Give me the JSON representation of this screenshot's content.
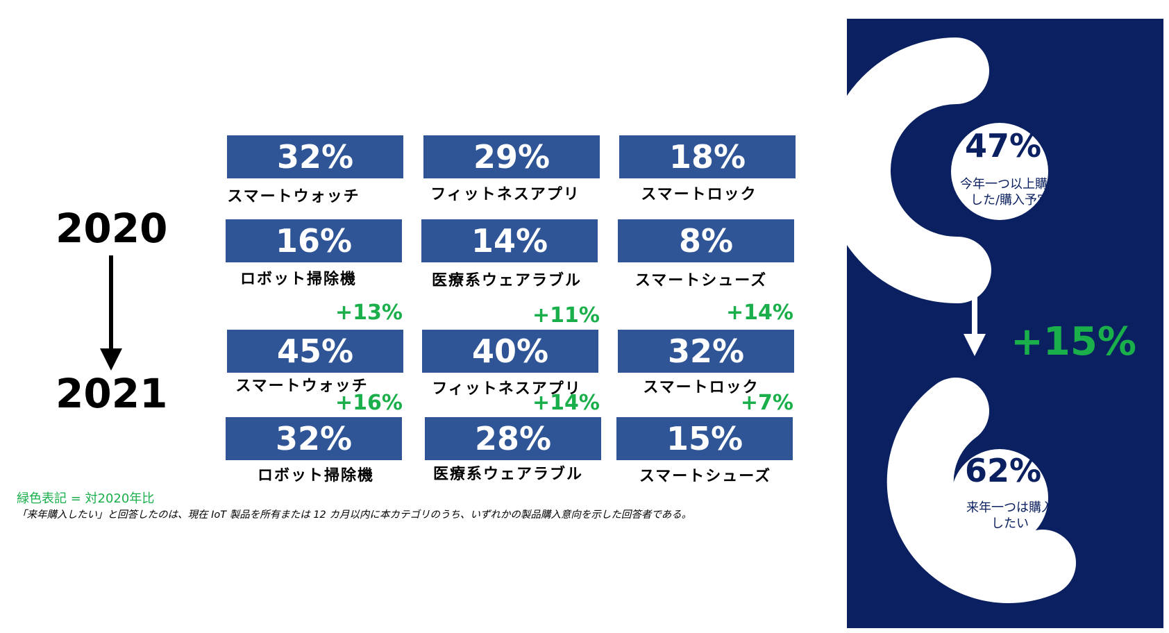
{
  "years": {
    "from": "2020",
    "to": "2021"
  },
  "grid_2020": [
    {
      "pct": "32%",
      "label": "スマートウォッチ"
    },
    {
      "pct": "29%",
      "label": "フィットネスアプリ"
    },
    {
      "pct": "18%",
      "label": "スマートロック"
    },
    {
      "pct": "16%",
      "label": "ロボット掃除機"
    },
    {
      "pct": "14%",
      "label": "医療系ウェアラブル"
    },
    {
      "pct": "8%",
      "label": "スマートシューズ"
    }
  ],
  "grid_2021": [
    {
      "pct": "45%",
      "label": "スマートウォッチ",
      "delta": "+13%"
    },
    {
      "pct": "40%",
      "label": "フィットネスアプリ",
      "delta": "+11%"
    },
    {
      "pct": "32%",
      "label": "スマートロック",
      "delta": "+14%"
    },
    {
      "pct": "32%",
      "label": "ロボット掃除機",
      "delta": "+16%"
    },
    {
      "pct": "28%",
      "label": "医療系ウェアラブル",
      "delta": "+14%"
    },
    {
      "pct": "15%",
      "label": "スマートシューズ",
      "delta": "+7%"
    }
  ],
  "legend": "緑色表記 = 対2020年比",
  "footnote": "「来年購入したい」と回答したのは、現在 IoT 製品を所有または 12 カ月以内に本カテゴリのうち、いずれかの製品購入意向を示した回答者である。",
  "panel": {
    "top_pct": "47%",
    "top_label_line1": "今年一つ以上購入",
    "top_label_line2": "した/購入予定",
    "delta": "+15%",
    "bottom_pct": "62%",
    "bottom_label_line1": "来年一つは購入",
    "bottom_label_line2": "したい"
  },
  "colors": {
    "tile": "#2F5597",
    "panel": "#0B2060",
    "green": "#1AAF4B"
  },
  "chart_data": {
    "type": "bar",
    "categories": [
      "スマートウォッチ",
      "フィットネスアプリ",
      "スマートロック",
      "ロボット掃除機",
      "医療系ウェアラブル",
      "スマートシューズ"
    ],
    "series": [
      {
        "name": "2020",
        "values": [
          32,
          29,
          18,
          16,
          14,
          8
        ]
      },
      {
        "name": "2021",
        "values": [
          45,
          40,
          32,
          32,
          28,
          15
        ]
      }
    ],
    "change_vs_2020": [
      13,
      11,
      14,
      16,
      14,
      7
    ],
    "summary": {
      "2020": 47,
      "2021": 62,
      "change": 15
    }
  }
}
